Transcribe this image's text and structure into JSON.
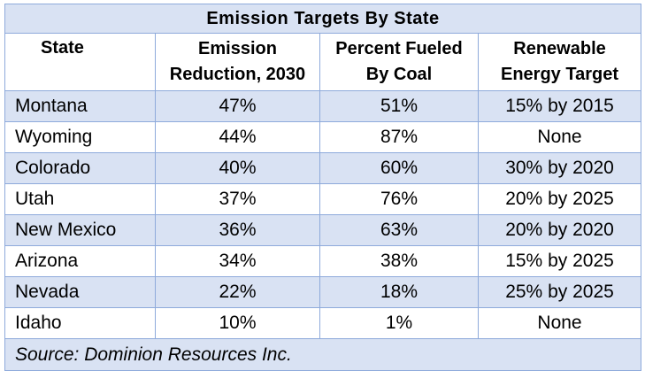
{
  "title": "Emission Targets By State",
  "headers": {
    "state": "State",
    "reduction_line1": "Emission",
    "reduction_line2": "Reduction, 2030",
    "coal_line1": "Percent Fueled",
    "coal_line2": "By Coal",
    "renewable_line1": "Renewable",
    "renewable_line2": "Energy Target"
  },
  "rows": [
    {
      "state": "Montana",
      "reduction": "47%",
      "coal": "51%",
      "renewable": "15% by 2015"
    },
    {
      "state": "Wyoming",
      "reduction": "44%",
      "coal": "87%",
      "renewable": "None"
    },
    {
      "state": "Colorado",
      "reduction": "40%",
      "coal": "60%",
      "renewable": "30% by 2020"
    },
    {
      "state": "Utah",
      "reduction": "37%",
      "coal": "76%",
      "renewable": "20% by 2025"
    },
    {
      "state": "New Mexico",
      "reduction": "36%",
      "coal": "63%",
      "renewable": "20% by 2020"
    },
    {
      "state": "Arizona",
      "reduction": "34%",
      "coal": "38%",
      "renewable": "15% by 2025"
    },
    {
      "state": "Nevada",
      "reduction": "22%",
      "coal": "18%",
      "renewable": "25% by 2025"
    },
    {
      "state": "Idaho",
      "reduction": "10%",
      "coal": "1%",
      "renewable": "None"
    }
  ],
  "source": "Source: Dominion Resources Inc.",
  "colors": {
    "shade": "#d9e2f3",
    "border": "#8eaadb"
  }
}
